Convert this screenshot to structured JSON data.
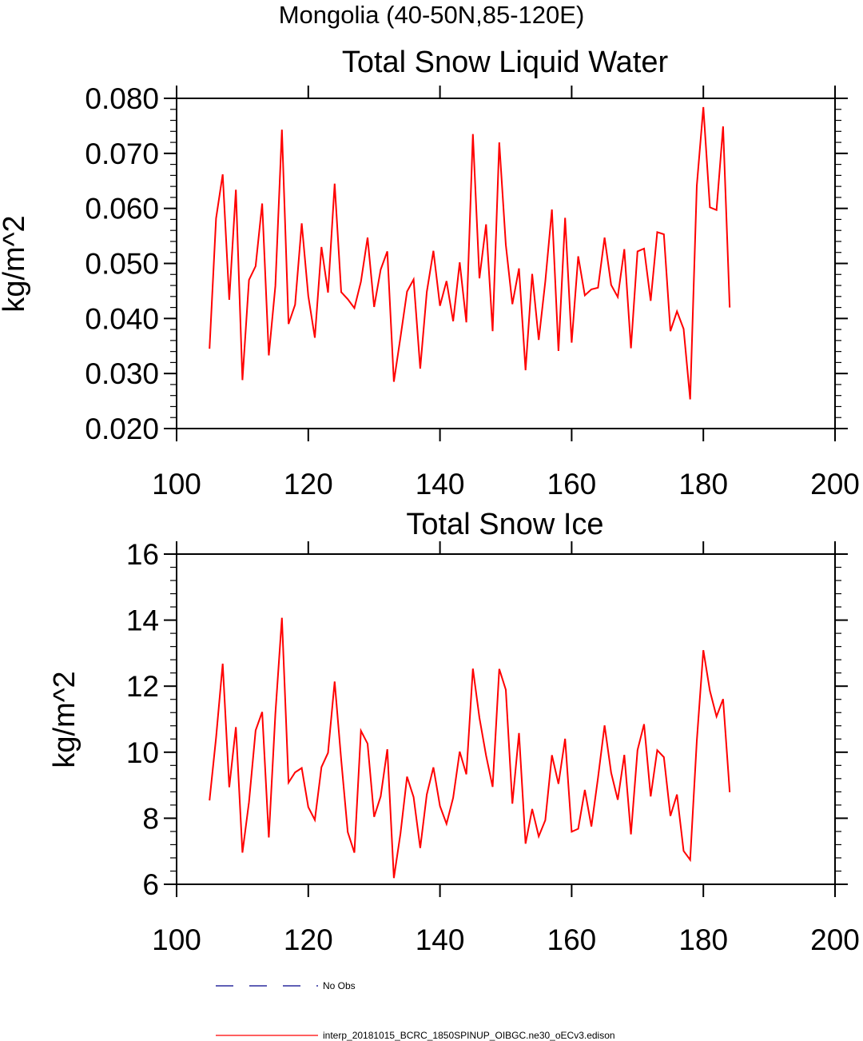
{
  "figure": {
    "suptitle": "Mongolia (40-50N,85-120E)"
  },
  "chart_data": [
    {
      "type": "line",
      "title": "Total Snow Liquid Water",
      "ylabel": "kg/m^2",
      "xlabel": "",
      "xlim": [
        100,
        200
      ],
      "ylim": [
        0.02,
        0.08
      ],
      "xticks": [
        100,
        120,
        140,
        160,
        180,
        200
      ],
      "xtick_labels": [
        "100",
        "120",
        "140",
        "160",
        "180",
        "200"
      ],
      "yticks": [
        0.02,
        0.03,
        0.04,
        0.05,
        0.06,
        0.07,
        0.08
      ],
      "ytick_labels": [
        "0.020",
        "0.030",
        "0.040",
        "0.050",
        "0.060",
        "0.070",
        "0.080"
      ],
      "y_minor_step": 0.002,
      "series": [
        {
          "name": "interp_20181015_BCRC_1850SPINUP_OIBGC.ne30_oECv3.edison",
          "color": "#ff0000",
          "x_start": 105,
          "x_step": 1,
          "values": [
            0.0345,
            0.0582,
            0.0662,
            0.0434,
            0.0634,
            0.0288,
            0.047,
            0.0495,
            0.0609,
            0.0333,
            0.0459,
            0.0743,
            0.039,
            0.0425,
            0.0573,
            0.0441,
            0.0365,
            0.053,
            0.0447,
            0.0645,
            0.0448,
            0.0435,
            0.0419,
            0.0467,
            0.0547,
            0.0421,
            0.0489,
            0.0522,
            0.0285,
            0.0366,
            0.0449,
            0.0471,
            0.0309,
            0.0448,
            0.0523,
            0.0423,
            0.0468,
            0.0395,
            0.0502,
            0.0393,
            0.0735,
            0.0473,
            0.0571,
            0.0377,
            0.072,
            0.0534,
            0.0426,
            0.0491,
            0.0306,
            0.0481,
            0.0361,
            0.0467,
            0.0598,
            0.0341,
            0.0583,
            0.0356,
            0.0513,
            0.0442,
            0.0453,
            0.0456,
            0.0547,
            0.0461,
            0.0439,
            0.0526,
            0.0346,
            0.0522,
            0.0527,
            0.0432,
            0.0557,
            0.0553,
            0.0377,
            0.0413,
            0.0381,
            0.0253,
            0.0641,
            0.0784,
            0.0602,
            0.0597,
            0.0749,
            0.042
          ]
        }
      ]
    },
    {
      "type": "line",
      "title": "Total Snow Ice",
      "ylabel": "kg/m^2",
      "xlabel": "",
      "xlim": [
        100,
        200
      ],
      "ylim": [
        6,
        16
      ],
      "xticks": [
        100,
        120,
        140,
        160,
        180,
        200
      ],
      "xtick_labels": [
        "100",
        "120",
        "140",
        "160",
        "180",
        "200"
      ],
      "yticks": [
        6,
        8,
        10,
        12,
        14,
        16
      ],
      "ytick_labels": [
        "6",
        "8",
        "10",
        "12",
        "14",
        "16"
      ],
      "y_minor_step": 0.4,
      "series": [
        {
          "name": "interp_20181015_BCRC_1850SPINUP_OIBGC.ne30_oECv3.edison",
          "color": "#ff0000",
          "x_start": 105,
          "x_step": 1,
          "values": [
            8.54,
            10.44,
            12.68,
            8.94,
            10.76,
            6.96,
            8.49,
            10.66,
            11.22,
            7.42,
            11.16,
            14.07,
            9.08,
            9.39,
            9.52,
            8.34,
            7.95,
            9.55,
            9.98,
            12.14,
            9.77,
            7.58,
            6.96,
            10.65,
            10.26,
            8.04,
            8.66,
            10.09,
            6.19,
            7.54,
            9.26,
            8.64,
            7.1,
            8.72,
            9.54,
            8.37,
            7.83,
            8.62,
            10.02,
            9.33,
            12.53,
            11.04,
            9.9,
            8.95,
            12.52,
            11.89,
            8.44,
            10.58,
            7.23,
            8.28,
            7.45,
            7.94,
            9.91,
            9.04,
            10.41,
            7.59,
            7.68,
            8.86,
            7.75,
            9.23,
            10.81,
            9.38,
            8.56,
            9.92,
            7.51,
            10.06,
            10.85,
            8.66,
            10.06,
            9.85,
            8.07,
            8.72,
            7.01,
            6.74,
            10.34,
            13.09,
            11.86,
            11.08,
            11.61,
            8.79
          ]
        }
      ]
    }
  ],
  "legend": [
    {
      "label": "No Obs",
      "color": "#00008b",
      "style": "dashed"
    },
    {
      "label": "interp_20181015_BCRC_1850SPINUP_OIBGC.ne30_oECv3.edison",
      "color": "#ff0000",
      "style": "solid"
    }
  ]
}
